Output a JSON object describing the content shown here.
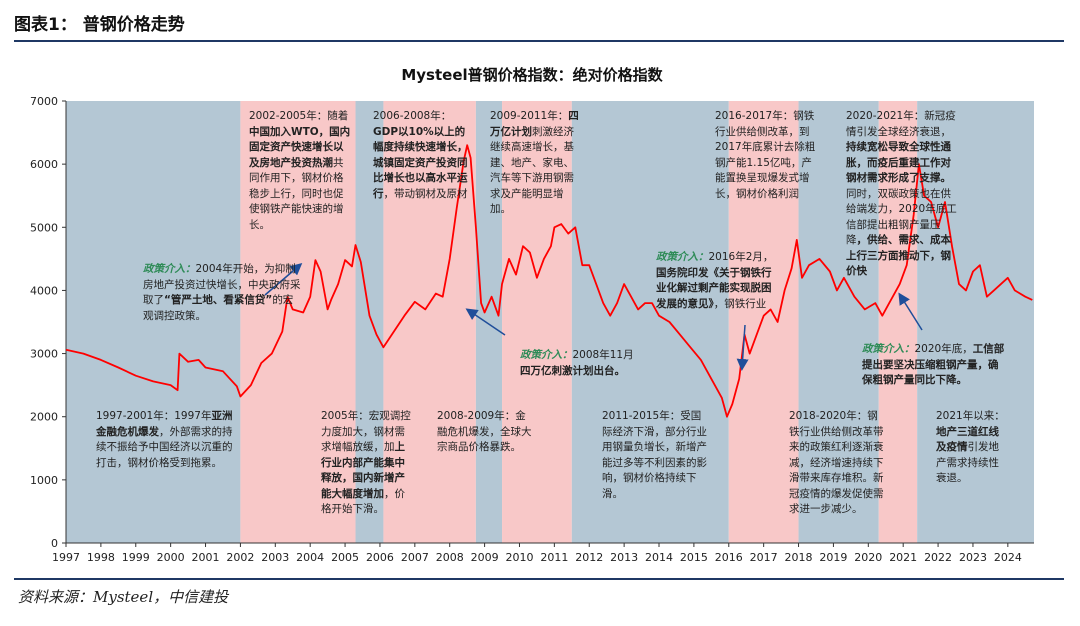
{
  "header": {
    "figure_label": "图表1：  普钢价格走势"
  },
  "source": "资料来源：Mysteel，中信建投",
  "chart_data": {
    "type": "line",
    "title": "Mysteel普钢价格指数：绝对价格指数",
    "xlabel": "",
    "ylabel": "",
    "ylim": [
      0,
      7000
    ],
    "xlim": [
      1997.0,
      2024.75
    ],
    "yticks": [
      0,
      1000,
      2000,
      3000,
      4000,
      5000,
      6000,
      7000
    ],
    "xticks": [
      "1997",
      "1998",
      "1999",
      "2000",
      "2001",
      "2002",
      "2003",
      "2004",
      "2005",
      "2006",
      "2007",
      "2008",
      "2009",
      "2010",
      "2011",
      "2012",
      "2013",
      "2014",
      "2015",
      "2016",
      "2017",
      "2018",
      "2019",
      "2020",
      "2021",
      "2022",
      "2023",
      "2024"
    ],
    "grid": false,
    "line_color": "#ff0000",
    "bands": [
      {
        "start": 1997.0,
        "end": 2002.0,
        "color": "#b4c7d4"
      },
      {
        "start": 2002.0,
        "end": 2005.3,
        "color": "#f8c8c8"
      },
      {
        "start": 2005.3,
        "end": 2006.1,
        "color": "#b4c7d4"
      },
      {
        "start": 2006.1,
        "end": 2008.75,
        "color": "#f8c8c8"
      },
      {
        "start": 2008.75,
        "end": 2009.5,
        "color": "#b4c7d4"
      },
      {
        "start": 2009.5,
        "end": 2011.5,
        "color": "#f8c8c8"
      },
      {
        "start": 2011.5,
        "end": 2016.0,
        "color": "#b4c7d4"
      },
      {
        "start": 2016.0,
        "end": 2018.0,
        "color": "#f8c8c8"
      },
      {
        "start": 2018.0,
        "end": 2020.3,
        "color": "#b4c7d4"
      },
      {
        "start": 2020.3,
        "end": 2021.4,
        "color": "#f8c8c8"
      },
      {
        "start": 2021.4,
        "end": 2024.75,
        "color": "#b4c7d4"
      }
    ],
    "points": [
      [
        1997.0,
        3060
      ],
      [
        1997.5,
        3000
      ],
      [
        1998.0,
        2900
      ],
      [
        1998.5,
        2780
      ],
      [
        1999.0,
        2650
      ],
      [
        1999.5,
        2560
      ],
      [
        2000.0,
        2500
      ],
      [
        2000.2,
        2420
      ],
      [
        2000.25,
        3000
      ],
      [
        2000.5,
        2870
      ],
      [
        2000.8,
        2900
      ],
      [
        2001.0,
        2780
      ],
      [
        2001.5,
        2720
      ],
      [
        2001.9,
        2480
      ],
      [
        2002.0,
        2320
      ],
      [
        2002.3,
        2500
      ],
      [
        2002.6,
        2850
      ],
      [
        2002.9,
        3000
      ],
      [
        2003.2,
        3350
      ],
      [
        2003.35,
        3900
      ],
      [
        2003.5,
        3700
      ],
      [
        2003.8,
        3650
      ],
      [
        2004.0,
        3900
      ],
      [
        2004.15,
        4480
      ],
      [
        2004.3,
        4300
      ],
      [
        2004.5,
        3700
      ],
      [
        2004.6,
        3850
      ],
      [
        2004.8,
        4100
      ],
      [
        2005.0,
        4480
      ],
      [
        2005.2,
        4380
      ],
      [
        2005.3,
        4720
      ],
      [
        2005.45,
        4450
      ],
      [
        2005.7,
        3600
      ],
      [
        2005.9,
        3300
      ],
      [
        2006.1,
        3100
      ],
      [
        2006.4,
        3350
      ],
      [
        2006.7,
        3600
      ],
      [
        2007.0,
        3820
      ],
      [
        2007.3,
        3700
      ],
      [
        2007.6,
        3950
      ],
      [
        2007.8,
        3900
      ],
      [
        2008.0,
        4500
      ],
      [
        2008.2,
        5300
      ],
      [
        2008.4,
        6050
      ],
      [
        2008.5,
        6300
      ],
      [
        2008.6,
        6100
      ],
      [
        2008.75,
        5000
      ],
      [
        2008.9,
        3800
      ],
      [
        2009.0,
        3650
      ],
      [
        2009.2,
        3900
      ],
      [
        2009.4,
        3600
      ],
      [
        2009.5,
        4100
      ],
      [
        2009.7,
        4500
      ],
      [
        2009.9,
        4250
      ],
      [
        2010.1,
        4700
      ],
      [
        2010.3,
        4600
      ],
      [
        2010.5,
        4200
      ],
      [
        2010.7,
        4500
      ],
      [
        2010.9,
        4700
      ],
      [
        2011.0,
        5000
      ],
      [
        2011.2,
        5050
      ],
      [
        2011.4,
        4900
      ],
      [
        2011.6,
        5000
      ],
      [
        2011.8,
        4400
      ],
      [
        2012.0,
        4400
      ],
      [
        2012.2,
        4100
      ],
      [
        2012.4,
        3800
      ],
      [
        2012.6,
        3600
      ],
      [
        2012.8,
        3800
      ],
      [
        2013.0,
        4100
      ],
      [
        2013.2,
        3900
      ],
      [
        2013.4,
        3700
      ],
      [
        2013.6,
        3800
      ],
      [
        2013.8,
        3800
      ],
      [
        2014.0,
        3600
      ],
      [
        2014.3,
        3500
      ],
      [
        2014.6,
        3300
      ],
      [
        2014.9,
        3100
      ],
      [
        2015.2,
        2900
      ],
      [
        2015.5,
        2600
      ],
      [
        2015.8,
        2300
      ],
      [
        2015.95,
        2000
      ],
      [
        2016.1,
        2200
      ],
      [
        2016.3,
        2600
      ],
      [
        2016.45,
        3300
      ],
      [
        2016.6,
        3000
      ],
      [
        2016.8,
        3300
      ],
      [
        2017.0,
        3600
      ],
      [
        2017.2,
        3700
      ],
      [
        2017.4,
        3500
      ],
      [
        2017.6,
        4000
      ],
      [
        2017.8,
        4350
      ],
      [
        2017.95,
        4800
      ],
      [
        2018.1,
        4200
      ],
      [
        2018.3,
        4400
      ],
      [
        2018.6,
        4500
      ],
      [
        2018.9,
        4300
      ],
      [
        2019.1,
        4000
      ],
      [
        2019.3,
        4200
      ],
      [
        2019.6,
        3900
      ],
      [
        2019.9,
        3700
      ],
      [
        2020.2,
        3800
      ],
      [
        2020.4,
        3600
      ],
      [
        2020.6,
        3800
      ],
      [
        2020.9,
        4100
      ],
      [
        2021.1,
        4400
      ],
      [
        2021.3,
        5200
      ],
      [
        2021.45,
        6000
      ],
      [
        2021.6,
        5500
      ],
      [
        2021.8,
        5400
      ],
      [
        2022.0,
        5000
      ],
      [
        2022.2,
        5400
      ],
      [
        2022.4,
        4700
      ],
      [
        2022.6,
        4100
      ],
      [
        2022.8,
        4000
      ],
      [
        2023.0,
        4300
      ],
      [
        2023.2,
        4400
      ],
      [
        2023.4,
        3900
      ],
      [
        2023.6,
        4000
      ],
      [
        2023.8,
        4100
      ],
      [
        2024.0,
        4200
      ],
      [
        2024.2,
        4000
      ],
      [
        2024.5,
        3900
      ],
      [
        2024.7,
        3850
      ]
    ]
  },
  "annotations": {
    "a1": [
      "1997-2001年：1997年",
      "亚洲金融危机爆发",
      "，外部需求的持续不振给予中国经济以沉重的打击，钢材价格受到拖累。"
    ],
    "a2": [
      "2002-2005年：随着",
      "中国加入WTO，国内固定资产快速增长以及房地产投资热潮",
      "共同作用下，钢材价格稳步上行，同时也促使钢铁产能快速的增长。"
    ],
    "a3": [
      "政策介入：",
      "2004年开始，为抑制房地产投资过快增长，中央政府采取了",
      "“管严土地、看紧信贷”",
      "的宏观调控政策。"
    ],
    "a4": [
      "2005年：宏观调控力度加大，钢材需求增幅放缓，加",
      "上行业内部产能集中释放，国内新增产能大幅度增加",
      "，价格开始下滑。"
    ],
    "a5": [
      "2006-2008年：",
      "GDP以10%以上的幅度持续快速增长，城镇固定资产投资同比增长也以高水平运行",
      "，带动钢材及原材"
    ],
    "a6": [
      "2008-2009年：金融危机爆发，全球大宗商品价格暴跌。"
    ],
    "a7": [
      "2009-2011年：",
      "四万亿计划",
      "刺激经济继续高速增长，基建、地产、家电、汽车等下游用钢需求及产能明显增加。"
    ],
    "a8": [
      "政策介入：",
      "2008年11月",
      "四万亿刺激计划出台。"
    ],
    "a9": [
      "2011-2015年：受国际经济下滑，部分行业用钢量负增长，新增产能过多等不利因素的影响，钢材价格持续下滑。"
    ],
    "a10": [
      "2016-2017年：钢铁行业供给侧改革，到2017年底累计去除粗钢产能1.15亿吨，产能置换呈现爆发式增长，钢材价格利润"
    ],
    "a11": [
      "政策介入：",
      "2016年2月，",
      "国务院印发《关于钢铁行业化解过剩产能实现脱困发展的意见》",
      "，钢铁行业"
    ],
    "a12": [
      "2018-2020年：钢铁行业供给侧改革带来的政策红利逐渐衰减，经济增速持续下滑带来库存堆积。新冠疫情的爆发促使需求进一步减少。"
    ],
    "a13": [
      "2020-2021年：新冠疫情引发全球经济衰退，",
      "持续宽松导致全球性通胀，而疫后重建工作对钢材需求形成了支撑。",
      "同时，双碳政策也在供给端发力，2020年底工信部提出粗钢产量压降",
      "，供给、需求、成本上行三方面推动下，钢价快"
    ],
    "a14": [
      "政策介入：",
      "2020年底，",
      "工信部提出要坚决压缩粗钢产量，确保粗钢产量同比下降。"
    ],
    "a15": [
      "2021年以来：",
      "地产三道红线及疫情",
      "引发地产需求持续性衰退。"
    ]
  }
}
